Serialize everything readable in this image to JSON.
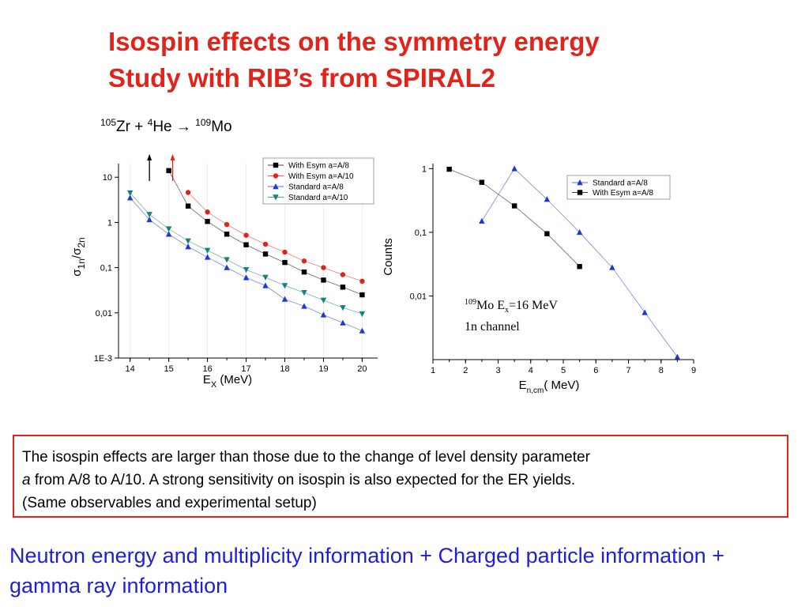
{
  "title": {
    "line1": "Isospin effects on the symmetry energy",
    "line2": "Study with RIB’s from SPIRAL2"
  },
  "reaction": {
    "zr_mass": "105",
    "zr": "Zr + ",
    "he_mass": "4",
    "he": "He",
    "arrow": "→",
    "mo_mass": "109",
    "mo": "Mo"
  },
  "colors": {
    "title": "#e2231a",
    "bottom_text": "#1f1fd6",
    "box_border": "#e2231a",
    "series_black": "#000000",
    "series_red": "#e2231a",
    "series_blue": "#1f35d6",
    "series_teal": "#1a7f7f"
  },
  "chart_data": [
    {
      "type": "line",
      "log_y": true,
      "x": [
        14,
        14.5,
        15,
        15.5,
        16,
        16.5,
        17,
        17.5,
        18,
        18.5,
        19,
        19.5,
        20
      ],
      "xlim": [
        13.7,
        20.4
      ],
      "ylim": [
        0.001,
        20
      ],
      "x_ticks": [
        "14",
        "15",
        "16",
        "17",
        "18",
        "19",
        "20"
      ],
      "y_ticks": [
        "1E-3",
        "0,01",
        "0,1",
        "1",
        "10"
      ],
      "xlabel_main": "E",
      "xlabel_sub": "X",
      "xlabel_unit": " (MeV)",
      "ylabel_sigma1": "σ",
      "ylabel_sub1": "1n",
      "ylabel_slash": "/σ",
      "ylabel_sub2": "2n",
      "legend_position": "top-right",
      "arrows": [
        {
          "x": 14.5,
          "color": "#000000"
        },
        {
          "x": 15.1,
          "color": "#e2231a"
        }
      ],
      "series": [
        {
          "name": "With Esym a=A/8",
          "color": "#000000",
          "marker": "square",
          "values": [
            null,
            null,
            14,
            2.3,
            1.05,
            0.55,
            0.32,
            0.2,
            0.13,
            0.08,
            0.053,
            0.037,
            0.025
          ]
        },
        {
          "name": "With Esym a=A/10",
          "color": "#e2231a",
          "marker": "circle",
          "values": [
            null,
            null,
            null,
            4.6,
            1.7,
            0.9,
            0.52,
            0.33,
            0.22,
            0.14,
            0.1,
            0.07,
            0.05
          ]
        },
        {
          "name": "Standard a=A/8",
          "color": "#1f35d6",
          "marker": "triangle-up",
          "values": [
            3.5,
            1.15,
            0.55,
            0.29,
            0.17,
            0.1,
            0.06,
            0.04,
            0.02,
            0.014,
            0.009,
            0.006,
            0.004
          ]
        },
        {
          "name": "Standard a=A/10",
          "color": "#1a7f7f",
          "marker": "triangle-down",
          "values": [
            4.5,
            1.5,
            0.72,
            0.39,
            0.24,
            0.15,
            0.09,
            0.061,
            0.04,
            0.028,
            0.019,
            0.013,
            0.0095
          ]
        }
      ]
    },
    {
      "type": "line",
      "log_y": true,
      "xlim": [
        1,
        9
      ],
      "ylim": [
        0.001,
        1.2
      ],
      "x_ticks": [
        "1",
        "2",
        "3",
        "4",
        "5",
        "6",
        "7",
        "8",
        "9"
      ],
      "y_ticks": [
        "0,01",
        "0,1",
        "1"
      ],
      "xlabel_main": "E",
      "xlabel_sub": "n,cm",
      "xlabel_unit": "( MeV)",
      "ylabel": "Counts",
      "legend_position": "top-right",
      "annotation": {
        "mass": "109",
        "nucleus": "Mo E",
        "sub": "x",
        "energy": "=16 MeV",
        "line2": "1n channel"
      },
      "series": [
        {
          "name": "Standard a=A/8",
          "color": "#1f35d6",
          "marker": "triangle-up",
          "x": [
            2.5,
            3.5,
            4.5,
            5.5,
            6.5,
            7.5,
            8.5
          ],
          "values": [
            0.15,
            1.0,
            0.33,
            0.1,
            0.028,
            0.0055,
            0.0011
          ]
        },
        {
          "name": "With Esym a=A/8",
          "color": "#000000",
          "marker": "square",
          "x": [
            1.5,
            2.5,
            3.5,
            4.5,
            5.5
          ],
          "values": [
            0.98,
            0.61,
            0.26,
            0.095,
            0.029
          ]
        }
      ]
    }
  ],
  "note": {
    "line1": "The isospin effects are larger than those due to the change of level density parameter",
    "italic_a": "a",
    "line2_rest": " from A/8 to A/10. A strong sensitivity on isospin is also expected for the ER yields.",
    "line3": "(Same observables and experimental setup)"
  },
  "bottom_text": "Neutron energy and multiplicity information + Charged particle information + gamma ray information"
}
